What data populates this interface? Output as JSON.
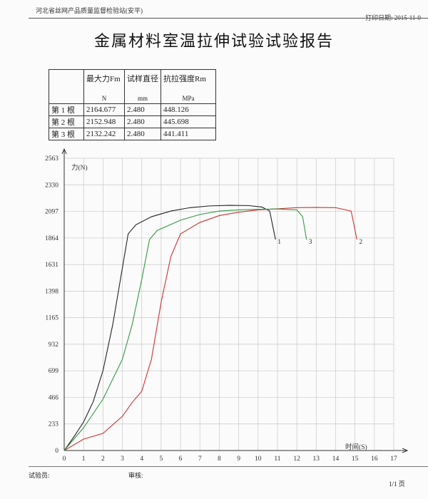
{
  "header": {
    "organization": "河北省丝网产品质量监督检验站(安平)",
    "print_date": "打印日期: 2015-11-0",
    "title": "金属材料室温拉伸试验试验报告"
  },
  "table": {
    "headers": [
      "最大力Fm",
      "试样直径",
      "抗拉强度Rm"
    ],
    "units": [
      "N",
      "mm",
      "MPa"
    ],
    "rows": [
      [
        "第 1 根",
        "2164.677",
        "2.480",
        "448.126"
      ],
      [
        "第 2 根",
        "2152.948",
        "2.480",
        "445.698"
      ],
      [
        "第 3 根",
        "2132.242",
        "2.480",
        "441.411"
      ]
    ]
  },
  "chart_data": {
    "type": "line",
    "y_label": "力(N)",
    "x_label": "时间(S)",
    "xlim": [
      0,
      17
    ],
    "ylim": [
      0,
      2563
    ],
    "xticks": [
      0,
      1,
      2,
      3,
      4,
      5,
      6,
      7,
      8,
      9,
      10,
      11,
      12,
      13,
      14,
      15,
      16,
      17
    ],
    "yticks": [
      0,
      233,
      466,
      699,
      932,
      1165,
      1398,
      1631,
      1864,
      2097,
      2330,
      2563
    ],
    "grid": true,
    "series": [
      {
        "name": "1",
        "color": "#222222",
        "x": [
          0,
          0.5,
          1,
          1.5,
          2,
          2.5,
          3,
          3.3,
          3.7,
          4.5,
          5.5,
          6.5,
          7.5,
          8.5,
          9.5,
          10.2,
          10.6,
          10.9
        ],
        "values": [
          0,
          120,
          250,
          430,
          700,
          1100,
          1600,
          1900,
          1980,
          2050,
          2100,
          2130,
          2145,
          2150,
          2148,
          2135,
          2100,
          1850
        ]
      },
      {
        "name": "2",
        "color": "#cc3333",
        "x": [
          0,
          1,
          2,
          3,
          3.5,
          4,
          4.5,
          5,
          5.5,
          6,
          7,
          8,
          9,
          10,
          11,
          12,
          13,
          14,
          14.8,
          15.1
        ],
        "values": [
          0,
          100,
          150,
          300,
          420,
          520,
          800,
          1300,
          1700,
          1900,
          2000,
          2060,
          2090,
          2110,
          2120,
          2130,
          2132,
          2130,
          2100,
          1850
        ]
      },
      {
        "name": "3",
        "color": "#339944",
        "x": [
          0,
          1,
          2,
          3,
          3.5,
          4,
          4.4,
          4.8,
          6,
          7,
          8,
          9,
          10,
          11,
          12,
          12.3,
          12.5
        ],
        "values": [
          0,
          200,
          450,
          800,
          1100,
          1500,
          1850,
          1930,
          2020,
          2070,
          2100,
          2110,
          2115,
          2118,
          2110,
          2050,
          1850
        ]
      }
    ]
  },
  "footer": {
    "tester": "试验员:",
    "reviewer": "审核:",
    "page": "1/1 页"
  }
}
